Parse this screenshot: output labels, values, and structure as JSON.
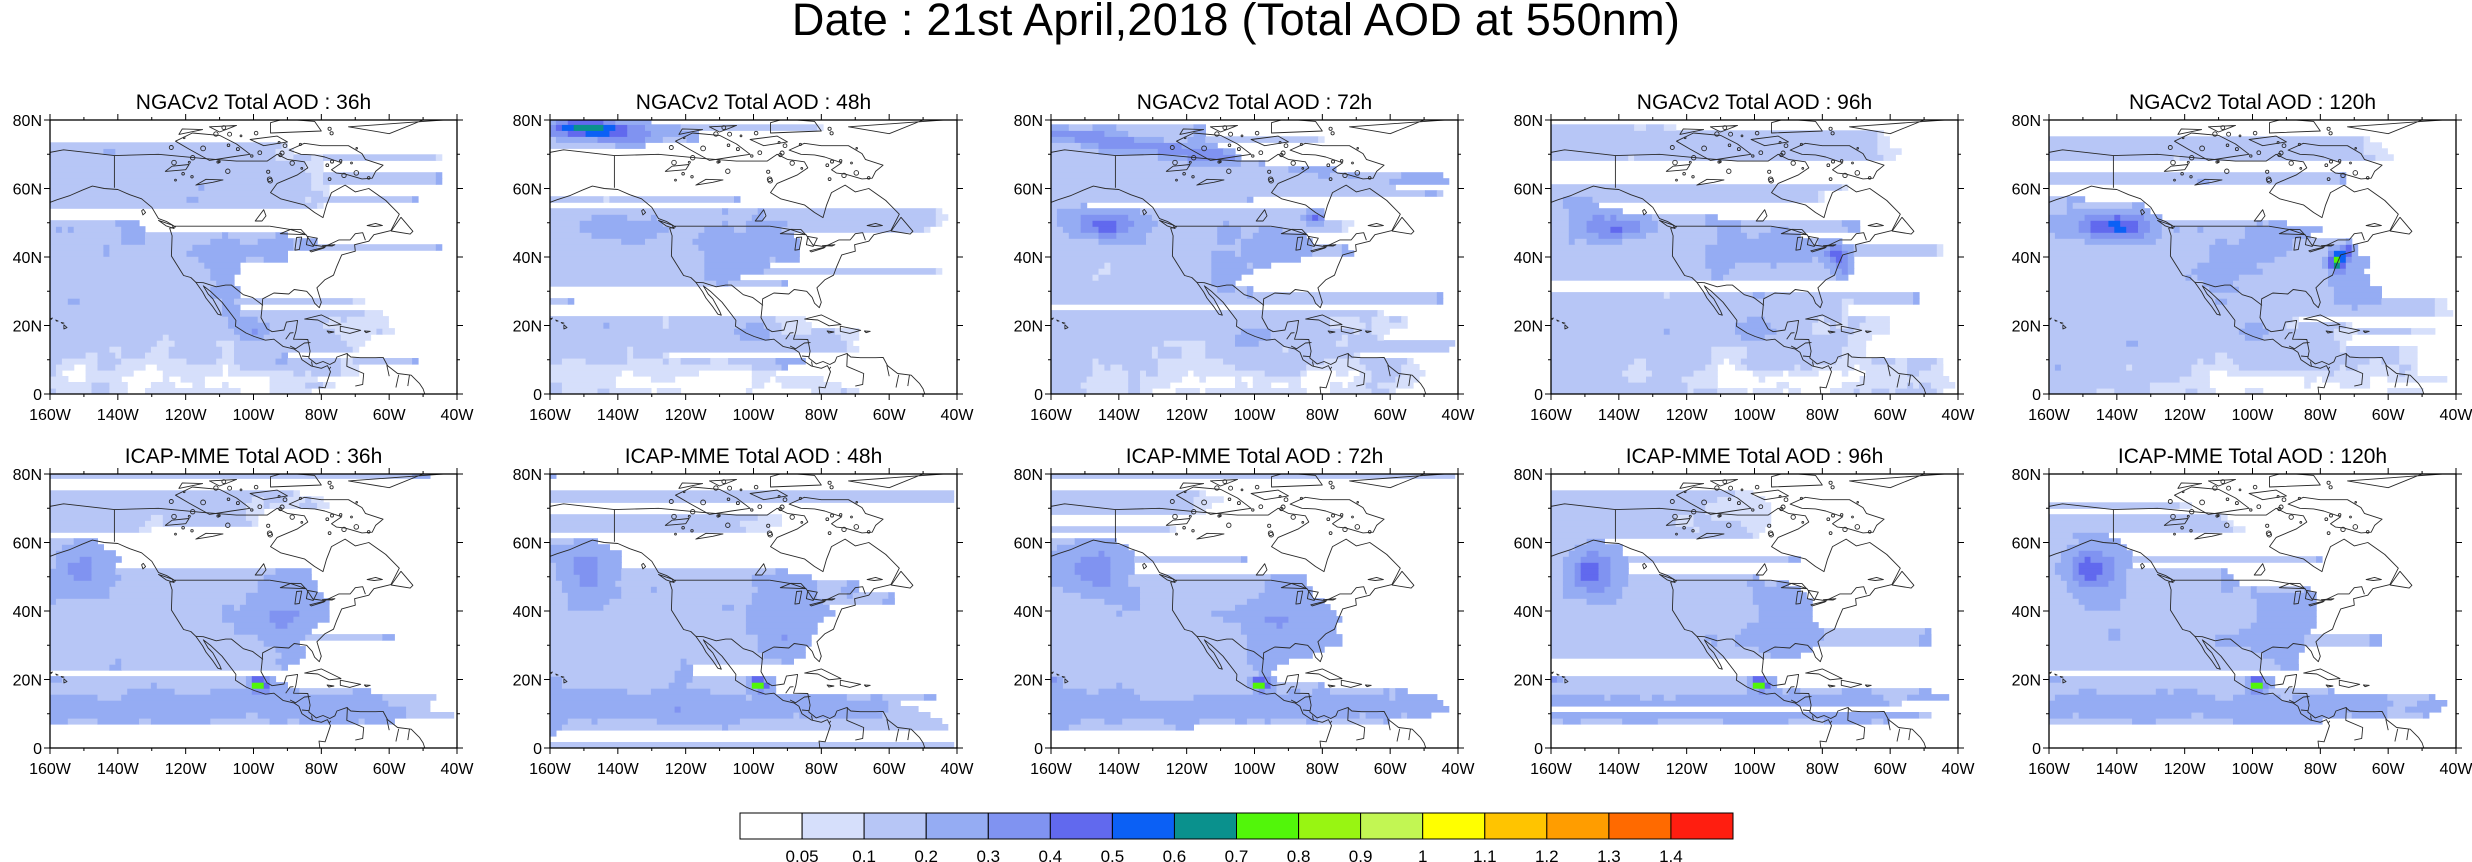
{
  "title": "Date : 21st April,2018 (Total AOD at 550nm)",
  "colors": {
    "land_outline": "#2a2a2a",
    "panel_border": "#000000",
    "levels": [
      "#ffffff",
      "#d6dffb",
      "#b7c6f6",
      "#95acf3",
      "#8093f1",
      "#6169ee",
      "#0b60f5",
      "#0a918d",
      "#52f60a",
      "#98f512",
      "#c2f653",
      "#ffff00",
      "#ffc400",
      "#ff9d00",
      "#ff6a00",
      "#ff1e10"
    ]
  },
  "panels": [
    {
      "model": "NGACv2",
      "title": "NGACv2 Total AOD : 36h"
    },
    {
      "model": "NGACv2",
      "title": "NGACv2 Total AOD : 48h"
    },
    {
      "model": "NGACv2",
      "title": "NGACv2 Total AOD : 72h"
    },
    {
      "model": "NGACv2",
      "title": "NGACv2 Total AOD : 96h"
    },
    {
      "model": "NGACv2",
      "title": "NGACv2 Total AOD : 120h"
    },
    {
      "model": "ICAP-MME",
      "title": "ICAP-MME Total AOD : 36h"
    },
    {
      "model": "ICAP-MME",
      "title": "ICAP-MME Total AOD : 48h"
    },
    {
      "model": "ICAP-MME",
      "title": "ICAP-MME Total AOD : 72h"
    },
    {
      "model": "ICAP-MME",
      "title": "ICAP-MME Total AOD : 96h"
    },
    {
      "model": "ICAP-MME",
      "title": "ICAP-MME Total AOD : 120h"
    }
  ],
  "axes": {
    "lon_labels": [
      "160W",
      "140W",
      "120W",
      "100W",
      "80W",
      "60W",
      "40W"
    ],
    "lat_labels": [
      "0",
      "20N",
      "40N",
      "60N",
      "80N"
    ]
  },
  "colorbar": {
    "labels": [
      "0.05",
      "0.1",
      "0.2",
      "0.3",
      "0.4",
      "0.5",
      "0.6",
      "0.7",
      "0.8",
      "0.9",
      "1",
      "1.1",
      "1.2",
      "1.3",
      "1.4"
    ]
  }
}
